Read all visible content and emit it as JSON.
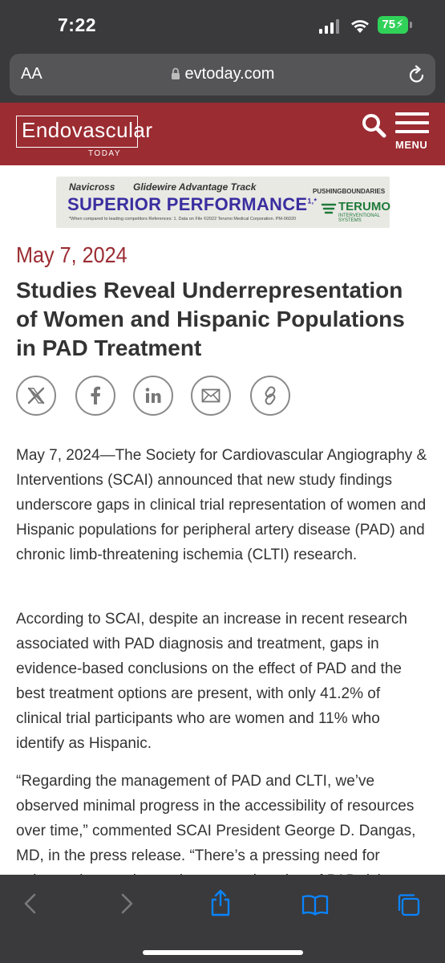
{
  "status_bar": {
    "time": "7:22",
    "battery": "75"
  },
  "browser": {
    "text_size_label": "AA",
    "url": "evtoday.com"
  },
  "site": {
    "logo_main": "Endovascular",
    "logo_sub": "TODAY",
    "menu_label": "MENU"
  },
  "ad": {
    "brand1": "Navicross",
    "brand2": "Glidewire Advantage Track",
    "headline": "SUPERIOR PERFORMANCE",
    "headline_sup": "1,*",
    "fine_print": "*When compared to leading competitors   References: 1. Data on File   ©2022 Terumo Medical Corporation. PM-06020",
    "tagline": "PUSHINGBOUNDARIES",
    "company": "TERUMO",
    "company_sub": "INTERVENTIONAL SYSTEMS"
  },
  "article": {
    "date": "May 7, 2024",
    "title": "Studies Reveal Underrepresentation of Women and Hispanic Populations in PAD Treatment",
    "paragraphs": [
      "May 7, 2024—The Society for Cardiovascular Angiography & Interventions (SCAI) announced that new study findings underscore gaps in clinical trial representation of women and Hispanic populations for peripheral artery disease (PAD) and chronic limb-threatening ischemia (CLTI) research.",
      "According to SCAI, despite an increase in recent research associated with PAD diagnosis and treatment, gaps in evidence-based conclusions on the effect of PAD and the best treatment options are present, with only 41.2% of clinical trial participants who are women and 11% who identify as Hispanic.",
      "“Regarding the management of PAD and CLTI, we’ve observed minimal progress in the accessibility of resources over time,” commented SCAI President George D. Dangas, MD, in the press release. “There’s a pressing need for enhanced screening and greater education of PAD risk"
    ]
  },
  "share_icons": [
    "x-icon",
    "facebook-icon",
    "linkedin-icon",
    "email-icon",
    "link-icon"
  ]
}
